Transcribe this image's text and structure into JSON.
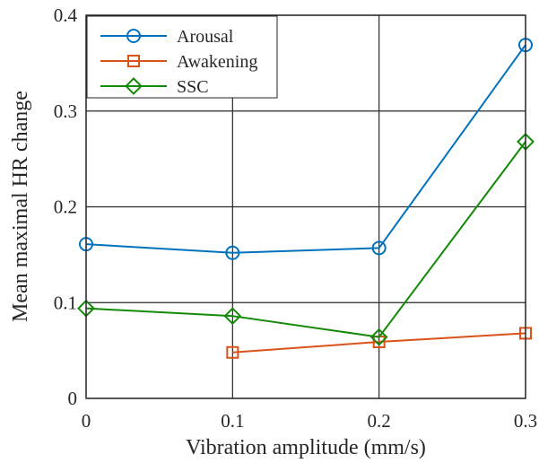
{
  "chart_data": {
    "type": "line",
    "xlabel": "Vibration amplitude (mm/s)",
    "ylabel": "Mean maximal HR change",
    "xlim": [
      0,
      0.3
    ],
    "ylim": [
      0,
      0.4
    ],
    "x_ticks": [
      "0",
      "0.1",
      "0.2",
      "0.3"
    ],
    "y_ticks": [
      "0",
      "0.1",
      "0.2",
      "0.3",
      "0.4"
    ],
    "grid": true,
    "legend_position": "top-left",
    "series": [
      {
        "name": "Arousal",
        "color": "#0072BD",
        "marker": "circle",
        "points": [
          [
            0,
            0.161
          ],
          [
            0.1,
            0.152
          ],
          [
            0.2,
            0.157
          ],
          [
            0.3,
            0.369
          ]
        ]
      },
      {
        "name": "Awakening",
        "color": "#D95319",
        "marker": "square",
        "points": [
          [
            0.1,
            0.048
          ],
          [
            0.2,
            0.059
          ],
          [
            0.3,
            0.068
          ]
        ]
      },
      {
        "name": "SSC",
        "color": "#138A07",
        "marker": "diamond",
        "points": [
          [
            0,
            0.094
          ],
          [
            0.1,
            0.086
          ],
          [
            0.2,
            0.064
          ],
          [
            0.3,
            0.268
          ]
        ]
      }
    ]
  }
}
